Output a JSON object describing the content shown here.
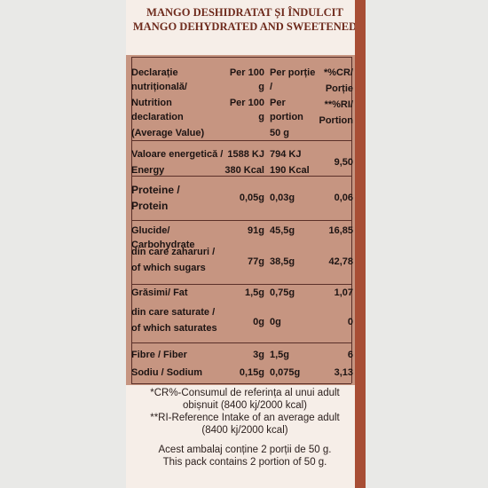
{
  "header": {
    "line1": "MANGO DESHIDRATAT ȘI ÎNDULCIT",
    "line2": "MANGO DEHYDRATED AND SWEETENED"
  },
  "columns": {
    "c0": [
      "Declarație nutrițională/",
      "Nutrition declaration",
      "(Average Value)"
    ],
    "c1": [
      "Per 100 g",
      "Per 100 g"
    ],
    "c2": [
      "Per porție /",
      "Per portion",
      "50 g"
    ],
    "c3": [
      "*%CR/",
      "Porție",
      "**%RI/",
      "Portion"
    ]
  },
  "rows": [
    {
      "name": [
        "Valoare energetică /",
        "Energy"
      ],
      "per100": [
        "1588 KJ",
        "380 Kcal"
      ],
      "portion": [
        "794 KJ",
        "190 Kcal"
      ],
      "pct": "9,50"
    },
    {
      "name": [
        "Proteine /",
        "Protein"
      ],
      "per100": "0,05g",
      "portion": "0,03g",
      "pct": "0,06"
    },
    {
      "name": [
        "Glucide/ Carbohydrate"
      ],
      "per100": "91g",
      "portion": "45,5g",
      "pct": "16,85"
    },
    {
      "name": [
        "din care zaharuri /",
        "of which sugars"
      ],
      "per100": "77g",
      "portion": "38,5g",
      "pct": "42,78"
    },
    {
      "name": [
        "Grăsimi/ Fat"
      ],
      "per100": "1,5g",
      "portion": "0,75g",
      "pct": "1,07"
    },
    {
      "name": [
        "din care saturate /",
        "of which saturates"
      ],
      "per100": "0g",
      "portion": "0g",
      "pct": "0"
    },
    {
      "name": [
        "Fibre / Fiber"
      ],
      "per100": "3g",
      "portion": "1,5g",
      "pct": "6"
    },
    {
      "name": [
        "Sodiu / Sodium"
      ],
      "per100": "0,15g",
      "portion": "0,075g",
      "pct": "3,13"
    }
  ],
  "footer": {
    "l1": "*CR%-Consumul de referința al unui adult",
    "l2": "obișnuit (8400 kj/2000 kcal)",
    "l3": "**RI-Reference Intake of an average adult",
    "l4": "(8400 kj/2000 kcal)",
    "l5": "Acest ambalaj conține 2 porții de 50 g.",
    "l6": "This pack contains 2 portion of 50 g."
  }
}
